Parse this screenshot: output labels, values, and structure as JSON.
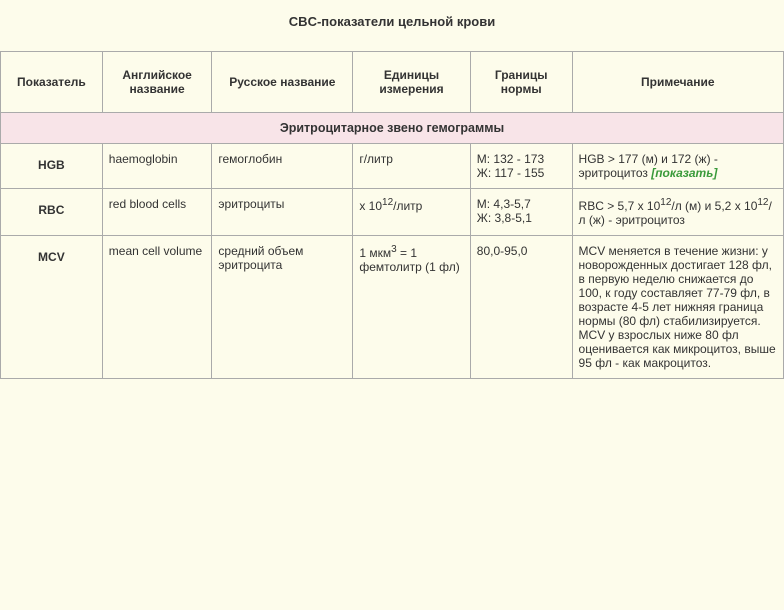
{
  "title": "CBC-показатели цельной крови",
  "columns": [
    "Показатель",
    "Английское название",
    "Русское название",
    "Единицы измерения",
    "Границы нормы",
    "Примечание"
  ],
  "section": "Эритроцитарное звено гемограммы",
  "rows": [
    {
      "code": "HGB",
      "en": "haemoglobin",
      "ru": "гемоглобин",
      "units": "г/литр",
      "range": "М: 132 - 173\nЖ: 117 - 155",
      "note_prefix": "HGB > 177 (м) и 172 (ж) - эритроцитоз ",
      "note_link": "[показать]"
    },
    {
      "code": "RBC",
      "en": "red blood cells",
      "ru": "эритроциты",
      "units_html": "x 10<sup>12</sup>/литр",
      "range": "М: 4,3-5,7\nЖ: 3,8-5,1",
      "note_html": "RBC > 5,7 x 10<sup>12</sup>/л (м) и 5,2 x 10<sup>12</sup>/л (ж) - эритроцитоз"
    },
    {
      "code": "MCV",
      "en": "mean cell volume",
      "ru": "средний объем эритроцита",
      "units_html": "1 мкм<sup>3</sup> = 1 фемтолитр (1 фл)",
      "range": "80,0-95,0",
      "note": "MCV меняется в течение жизни: у новорожденных достигает 128 фл, в первую неделю снижается до 100, к году составляет 77-79 фл, в возрасте 4-5 лет нижняя граница нормы (80 фл) стабилизируется. MCV у взрослых ниже 80 фл оценивается как микроцитоз, выше 95 фл - как макроцитоз."
    }
  ],
  "colors": {
    "background": "#fdfceb",
    "section_bg": "#f8e4e8",
    "border": "#aaaaaa",
    "link": "#3a9a3a"
  }
}
